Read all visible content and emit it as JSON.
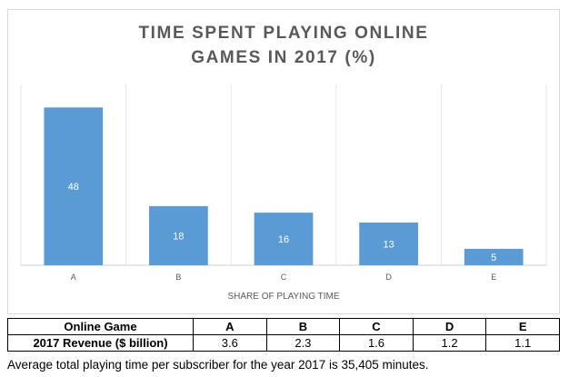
{
  "chart_data": {
    "type": "bar",
    "title_lines": [
      "TIME SPENT PLAYING ONLINE",
      "GAMES IN 2017 (%)"
    ],
    "categories": [
      "A",
      "B",
      "C",
      "D",
      "E"
    ],
    "values": [
      48,
      18,
      16,
      13,
      5
    ],
    "xlabel": "SHARE OF PLAYING TIME",
    "ylabel": "",
    "ylim": [
      0,
      55
    ],
    "data_labels": true,
    "grid": "vertical category separators",
    "colors": {
      "bar": "#5b9bd5",
      "title": "#595959"
    }
  },
  "table": {
    "header": [
      "Online Game",
      "A",
      "B",
      "C",
      "D",
      "E"
    ],
    "row": [
      "2017 Revenue ($ billion)",
      "3.6",
      "2.3",
      "1.6",
      "1.2",
      "1.1"
    ]
  },
  "footnote": "Average total playing time per subscriber for the year 2017 is 35,405 minutes."
}
